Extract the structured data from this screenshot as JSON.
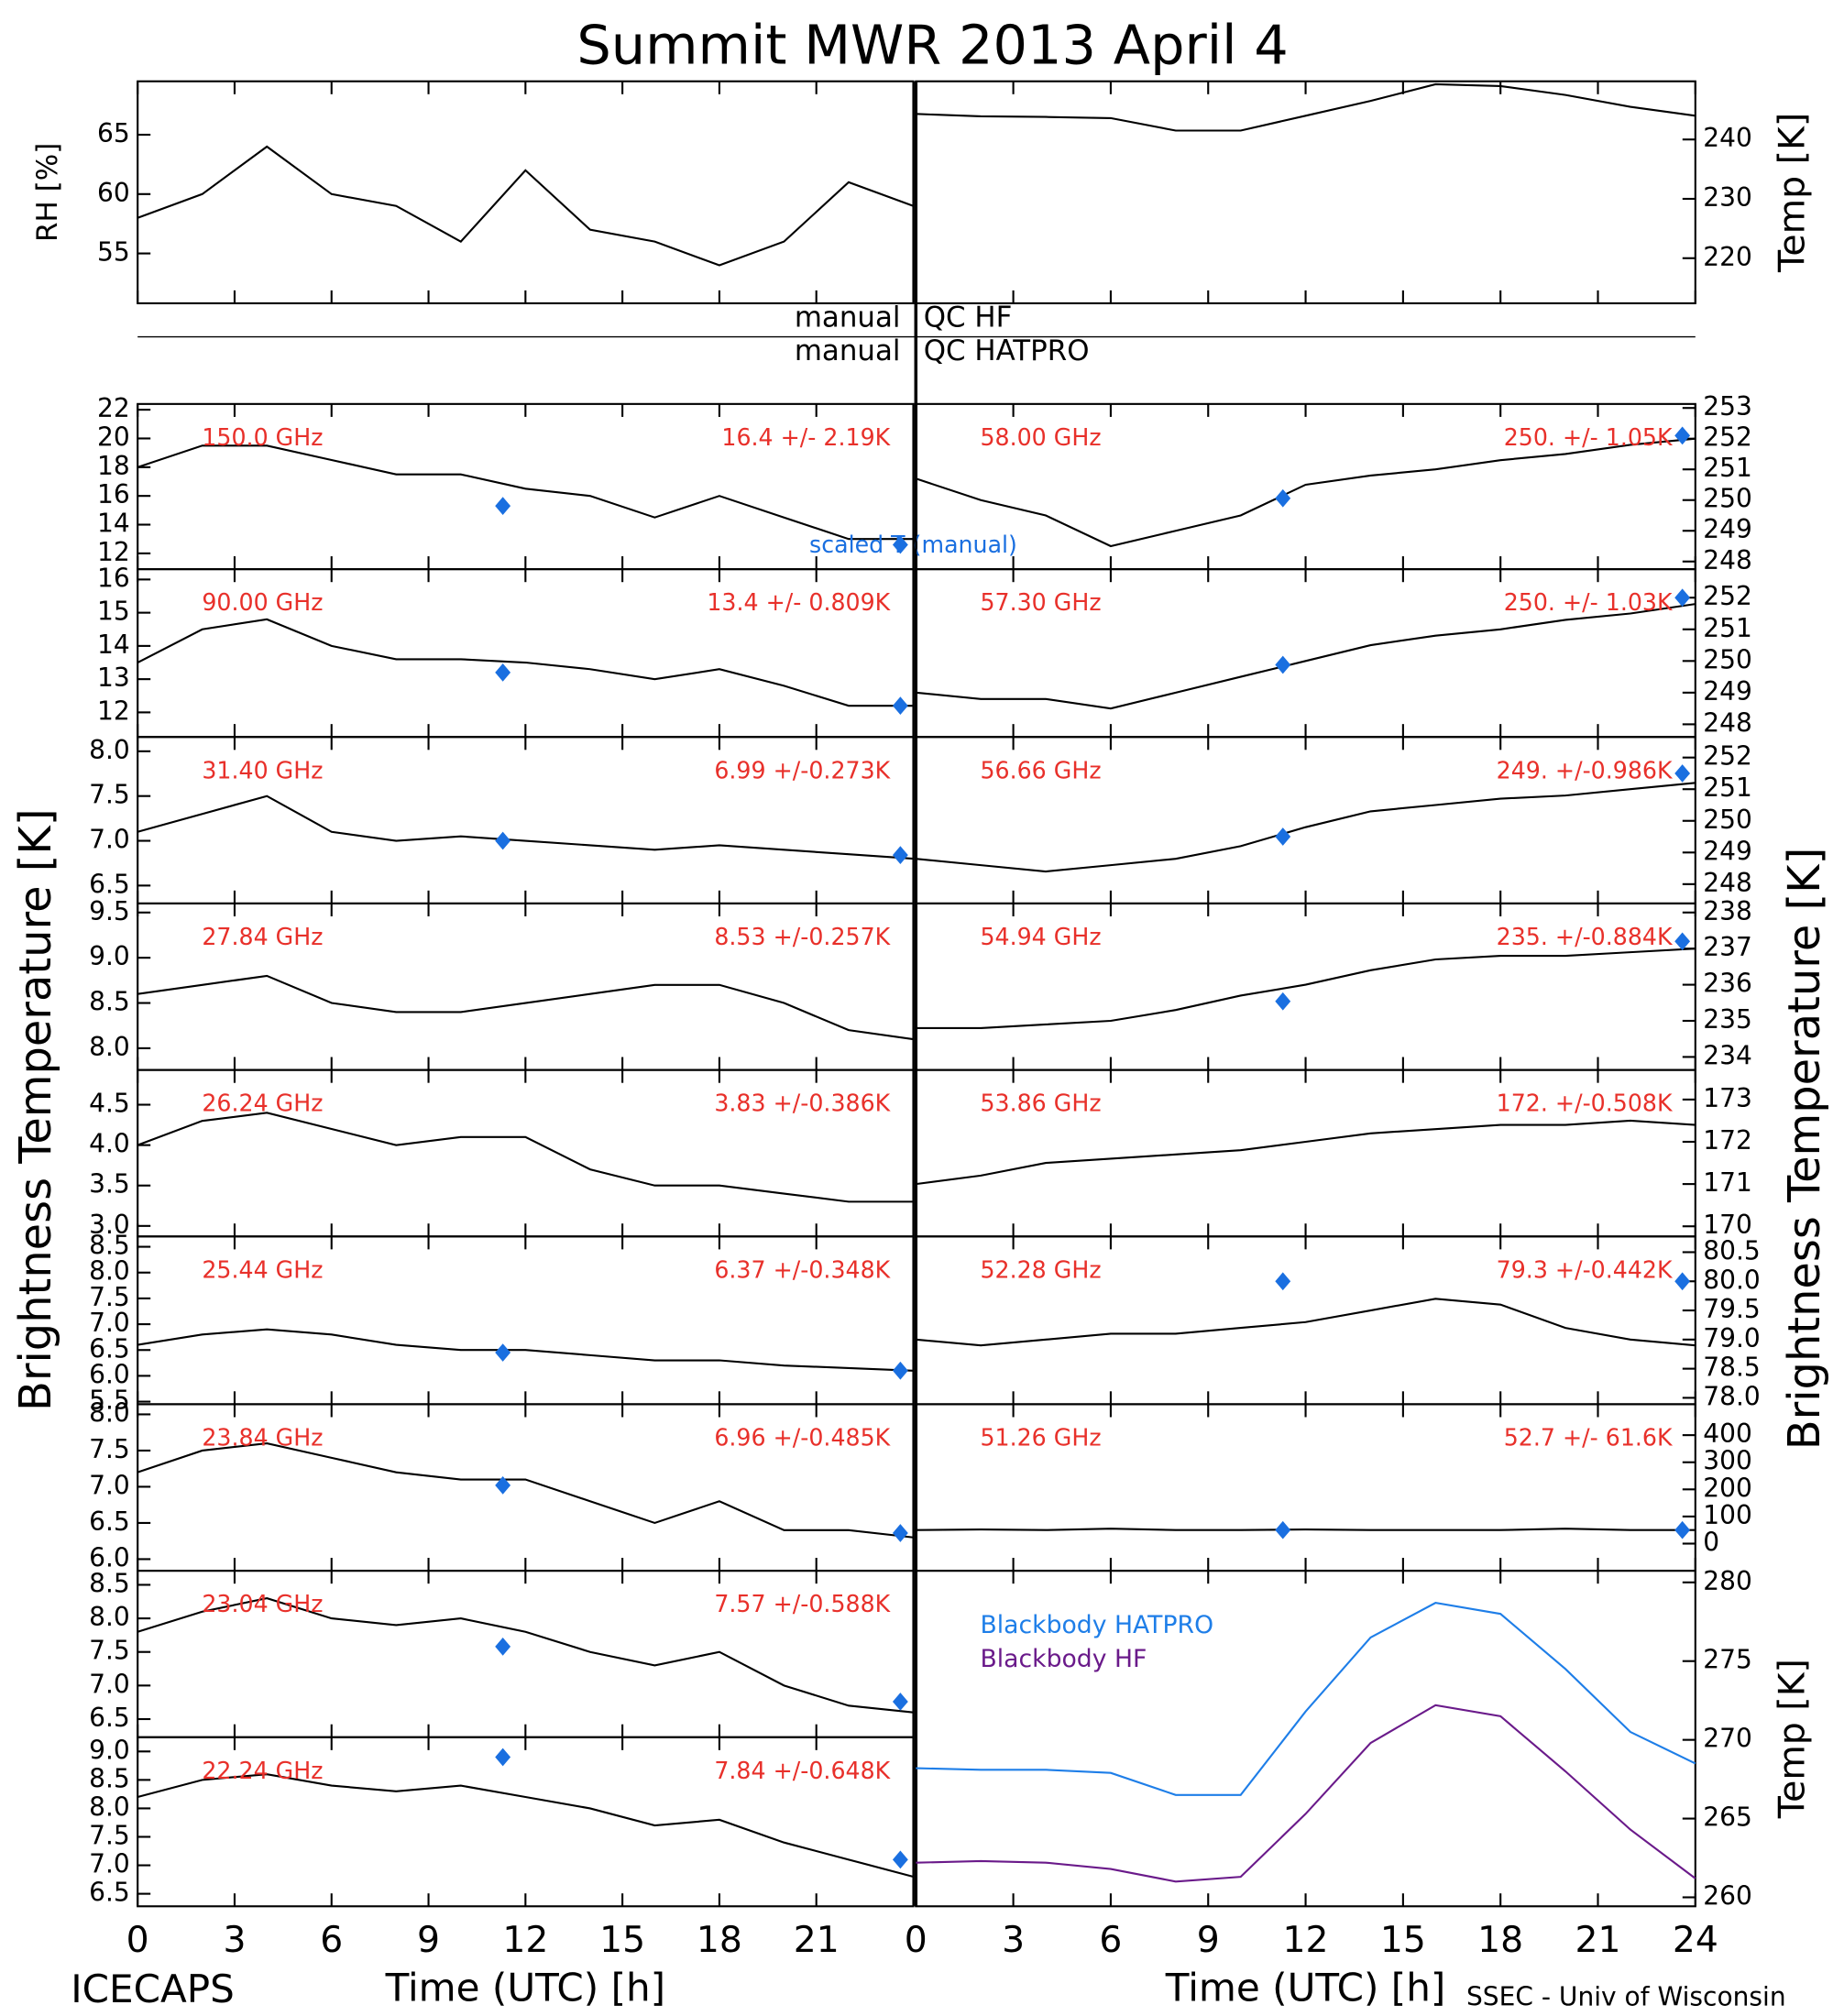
{
  "title": "Summit MWR 2013 April  4",
  "qc": [
    {
      "left": "manual",
      "right": "QC HF"
    },
    {
      "left": "manual",
      "right": "QC HATPRO"
    }
  ],
  "ylabel_left": "Brightness Temperature [K]",
  "ylabel_right": "Brightness Temperature [K]",
  "footer_left": "ICECAPS",
  "footer_right": "SSEC - Univ of Wisconsin",
  "chart_data": [
    {
      "type": "line",
      "ylabel": "RH [%]",
      "xlim": [
        0,
        24
      ],
      "ylim": [
        50.8,
        69.5
      ],
      "yticks": [
        55,
        60,
        65
      ],
      "x": [
        0,
        2,
        4,
        6,
        8,
        10,
        12,
        14,
        16,
        18,
        20,
        22,
        24
      ],
      "series": [
        {
          "color": "#000000",
          "values": [
            58,
            60,
            64,
            60,
            59,
            56,
            62,
            57,
            56,
            54,
            56,
            61,
            59
          ]
        }
      ]
    },
    {
      "type": "line",
      "ylabel": "Temp [K]",
      "xlim": [
        0,
        24
      ],
      "ylim": [
        212.4,
        249.8
      ],
      "yticks": [
        220,
        230,
        240
      ],
      "x": [
        0,
        2,
        4,
        6,
        8,
        10,
        12,
        14,
        16,
        18,
        20,
        22,
        24
      ],
      "series": [
        {
          "color": "#000000",
          "values": [
            244.3,
            243.9,
            243.8,
            243.6,
            241.5,
            241.5,
            244,
            246.5,
            249.3,
            249,
            247.5,
            245.5,
            244
          ]
        }
      ]
    },
    {
      "type": "line",
      "label": "150.0 GHz",
      "stat": "16.4 +/-  2.19K",
      "note": "scaled T (manual)",
      "xlim": [
        0,
        24
      ],
      "ylim": [
        10.9,
        22.4
      ],
      "yticks": [
        12,
        14,
        16,
        18,
        20,
        22
      ],
      "x": [
        0,
        2,
        4,
        6,
        8,
        10,
        12,
        14,
        16,
        18,
        20,
        22,
        24
      ],
      "series": [
        {
          "color": "#000000",
          "values": [
            18,
            19.5,
            19.5,
            18.5,
            17.5,
            17.5,
            16.5,
            16,
            14.5,
            16,
            14.5,
            13,
            13
          ]
        }
      ],
      "points": {
        "color": "#1a6fe0",
        "x": [
          11.3,
          23.6
        ],
        "values": [
          15.3,
          12.6
        ]
      }
    },
    {
      "type": "line",
      "label": "90.00 GHz",
      "stat": "13.4 +/- 0.809K",
      "xlim": [
        0,
        24
      ],
      "ylim": [
        11.26,
        16.31
      ],
      "yticks": [
        12,
        13,
        14,
        15,
        16
      ],
      "x": [
        0,
        2,
        4,
        6,
        8,
        10,
        12,
        14,
        16,
        18,
        20,
        22,
        24
      ],
      "series": [
        {
          "color": "#000000",
          "values": [
            13.5,
            14.5,
            14.8,
            14,
            13.6,
            13.6,
            13.5,
            13.3,
            13,
            13.3,
            12.8,
            12.2,
            12.2
          ]
        }
      ],
      "points": {
        "color": "#1a6fe0",
        "x": [
          11.3,
          23.6
        ],
        "values": [
          13.2,
          12.2
        ]
      }
    },
    {
      "type": "line",
      "label": "31.40 GHz",
      "stat": "6.99 +/-0.273K",
      "xlim": [
        0,
        24
      ],
      "ylim": [
        6.3,
        8.16
      ],
      "yticks": [
        6.5,
        {
          "value": 7,
          "label": "7.0"
        },
        7.5,
        {
          "value": 8,
          "label": "8.0"
        }
      ],
      "x": [
        0,
        2,
        4,
        6,
        8,
        10,
        12,
        14,
        16,
        18,
        20,
        22,
        24
      ],
      "series": [
        {
          "color": "#000000",
          "values": [
            7.1,
            7.3,
            7.5,
            7.1,
            7.0,
            7.05,
            7.0,
            6.95,
            6.9,
            6.95,
            6.9,
            6.85,
            6.8
          ]
        }
      ],
      "points": {
        "color": "#1a6fe0",
        "x": [
          11.3,
          23.6
        ],
        "values": [
          7.0,
          6.84
        ]
      }
    },
    {
      "type": "line",
      "label": "27.84 GHz",
      "stat": "8.53 +/-0.257K",
      "xlim": [
        0,
        24
      ],
      "ylim": [
        7.76,
        9.6
      ],
      "yticks": [
        {
          "value": 8,
          "label": "8.0"
        },
        8.5,
        {
          "value": 9,
          "label": "9.0"
        },
        9.5
      ],
      "x": [
        0,
        2,
        4,
        6,
        8,
        10,
        12,
        14,
        16,
        18,
        20,
        22,
        24
      ],
      "series": [
        {
          "color": "#000000",
          "values": [
            8.6,
            8.7,
            8.8,
            8.5,
            8.4,
            8.4,
            8.5,
            8.6,
            8.7,
            8.7,
            8.5,
            8.2,
            8.1
          ]
        }
      ]
    },
    {
      "type": "line",
      "label": "26.24 GHz",
      "stat": "3.83 +/-0.386K",
      "xlim": [
        0,
        24
      ],
      "ylim": [
        2.87,
        4.93
      ],
      "yticks": [
        {
          "value": 3,
          "label": "3.0"
        },
        3.5,
        {
          "value": 4,
          "label": "4.0"
        },
        4.5
      ],
      "x": [
        0,
        2,
        4,
        6,
        8,
        10,
        12,
        14,
        16,
        18,
        20,
        22,
        24
      ],
      "series": [
        {
          "color": "#000000",
          "values": [
            4.0,
            4.3,
            4.4,
            4.2,
            4.0,
            4.1,
            4.1,
            3.7,
            3.5,
            3.5,
            3.4,
            3.3,
            3.3
          ]
        }
      ]
    },
    {
      "type": "line",
      "label": "25.44 GHz",
      "stat": "6.37 +/-0.348K",
      "xlim": [
        0,
        24
      ],
      "ylim": [
        5.45,
        8.7
      ],
      "yticks": [
        5.5,
        {
          "value": 6,
          "label": "6.0"
        },
        6.5,
        {
          "value": 7,
          "label": "7.0"
        },
        7.5,
        {
          "value": 8,
          "label": "8.0"
        },
        8.5
      ],
      "x": [
        0,
        2,
        4,
        6,
        8,
        10,
        12,
        14,
        16,
        18,
        20,
        22,
        24
      ],
      "series": [
        {
          "color": "#000000",
          "values": [
            6.6,
            6.8,
            6.9,
            6.8,
            6.6,
            6.5,
            6.5,
            6.4,
            6.3,
            6.3,
            6.2,
            6.15,
            6.1
          ]
        }
      ],
      "points": {
        "color": "#1a6fe0",
        "x": [
          11.3,
          23.6
        ],
        "values": [
          6.45,
          6.1
        ]
      }
    },
    {
      "type": "line",
      "label": "23.84 GHz",
      "stat": "6.96 +/-0.485K",
      "xlim": [
        0,
        24
      ],
      "ylim": [
        5.84,
        8.14
      ],
      "yticks": [
        {
          "value": 6,
          "label": "6.0"
        },
        6.5,
        {
          "value": 7,
          "label": "7.0"
        },
        7.5,
        {
          "value": 8,
          "label": "8.0"
        }
      ],
      "x": [
        0,
        2,
        4,
        6,
        8,
        10,
        12,
        14,
        16,
        18,
        20,
        22,
        24
      ],
      "series": [
        {
          "color": "#000000",
          "values": [
            7.2,
            7.5,
            7.6,
            7.4,
            7.2,
            7.1,
            7.1,
            6.8,
            6.5,
            6.8,
            6.4,
            6.4,
            6.3
          ]
        }
      ],
      "points": {
        "color": "#1a6fe0",
        "x": [
          11.3,
          23.6
        ],
        "values": [
          7.02,
          6.36
        ]
      }
    },
    {
      "type": "line",
      "label": "23.04 GHz",
      "stat": "7.57 +/-0.588K",
      "xlim": [
        0,
        24
      ],
      "ylim": [
        6.23,
        8.71
      ],
      "yticks": [
        6.5,
        {
          "value": 7,
          "label": "7.0"
        },
        7.5,
        {
          "value": 8,
          "label": "8.0"
        },
        8.5
      ],
      "x": [
        0,
        2,
        4,
        6,
        8,
        10,
        12,
        14,
        16,
        18,
        20,
        22,
        24
      ],
      "series": [
        {
          "color": "#000000",
          "values": [
            7.8,
            8.1,
            8.3,
            8.0,
            7.9,
            8.0,
            7.8,
            7.5,
            7.3,
            7.5,
            7.0,
            6.7,
            6.6
          ]
        }
      ],
      "points": {
        "color": "#1a6fe0",
        "x": [
          11.3,
          23.6
        ],
        "values": [
          7.58,
          6.76
        ]
      }
    },
    {
      "type": "line",
      "label": "22.24 GHz",
      "stat": "7.84 +/-0.648K",
      "xlabel": "Time (UTC) [h]",
      "xlim": [
        0,
        24
      ],
      "xticks": [
        0,
        3,
        6,
        9,
        12,
        15,
        18,
        21
      ],
      "ylim": [
        6.28,
        9.25
      ],
      "yticks": [
        6.5,
        {
          "value": 7,
          "label": "7.0"
        },
        7.5,
        {
          "value": 8,
          "label": "8.0"
        },
        8.5,
        {
          "value": 9,
          "label": "9.0"
        }
      ],
      "x": [
        0,
        2,
        4,
        6,
        8,
        10,
        12,
        14,
        16,
        18,
        20,
        22,
        24
      ],
      "series": [
        {
          "color": "#000000",
          "values": [
            8.2,
            8.5,
            8.6,
            8.4,
            8.3,
            8.4,
            8.2,
            8.0,
            7.7,
            7.8,
            7.4,
            7.1,
            6.8
          ]
        }
      ],
      "points": {
        "color": "#1a6fe0",
        "x": [
          11.3,
          23.6
        ],
        "values": [
          8.9,
          7.1
        ]
      }
    },
    {
      "type": "line",
      "label": "58.00 GHz",
      "stat": "250. +/- 1.05K",
      "xlim": [
        0,
        24
      ],
      "ylim": [
        247.75,
        253.13
      ],
      "yticks": [
        248,
        249,
        250,
        251,
        252,
        253
      ],
      "x": [
        0,
        2,
        4,
        6,
        8,
        10,
        12,
        14,
        16,
        18,
        20,
        22,
        24
      ],
      "series": [
        {
          "color": "#000000",
          "values": [
            250.7,
            250,
            249.5,
            248.5,
            249,
            249.5,
            250.5,
            250.8,
            251,
            251.3,
            251.5,
            251.8,
            252
          ]
        }
      ],
      "points": {
        "color": "#1a6fe0",
        "x": [
          11.3,
          23.6
        ],
        "values": [
          250.06,
          252.1
        ]
      }
    },
    {
      "type": "line",
      "label": "57.30 GHz",
      "stat": "250. +/- 1.03K",
      "xlim": [
        0,
        24
      ],
      "ylim": [
        247.6,
        252.9
      ],
      "yticks": [
        248,
        249,
        250,
        251,
        252
      ],
      "x": [
        0,
        2,
        4,
        6,
        8,
        10,
        12,
        14,
        16,
        18,
        20,
        22,
        24
      ],
      "series": [
        {
          "color": "#000000",
          "values": [
            249,
            248.8,
            248.8,
            248.5,
            249,
            249.5,
            250,
            250.5,
            250.8,
            251,
            251.3,
            251.5,
            251.8
          ]
        }
      ],
      "points": {
        "color": "#1a6fe0",
        "x": [
          11.3,
          23.6
        ],
        "values": [
          249.88,
          252.0
        ]
      }
    },
    {
      "type": "line",
      "label": "56.66 GHz",
      "stat": "249. +/-0.986K",
      "xlim": [
        0,
        24
      ],
      "ylim": [
        247.39,
        252.65
      ],
      "yticks": [
        248,
        249,
        250,
        251,
        252
      ],
      "x": [
        0,
        2,
        4,
        6,
        8,
        10,
        12,
        14,
        16,
        18,
        20,
        22,
        24
      ],
      "series": [
        {
          "color": "#000000",
          "values": [
            248.8,
            248.6,
            248.4,
            248.6,
            248.8,
            249.2,
            249.8,
            250.3,
            250.5,
            250.7,
            250.8,
            251,
            251.2
          ]
        }
      ],
      "points": {
        "color": "#1a6fe0",
        "x": [
          11.3,
          23.6
        ],
        "values": [
          249.5,
          251.5
        ]
      }
    },
    {
      "type": "line",
      "label": "54.94 GHz",
      "stat": "235. +/-0.884K",
      "xlim": [
        0,
        24
      ],
      "ylim": [
        233.64,
        238.25
      ],
      "yticks": [
        234,
        235,
        236,
        237,
        238
      ],
      "x": [
        0,
        2,
        4,
        6,
        8,
        10,
        12,
        14,
        16,
        18,
        20,
        22,
        24
      ],
      "series": [
        {
          "color": "#000000",
          "values": [
            234.8,
            234.8,
            234.9,
            235,
            235.3,
            235.7,
            236,
            236.4,
            236.7,
            236.8,
            236.8,
            236.9,
            237
          ]
        }
      ],
      "points": {
        "color": "#1a6fe0",
        "x": [
          11.3,
          23.6
        ],
        "values": [
          235.54,
          237.2
        ]
      }
    },
    {
      "type": "line",
      "label": "53.86 GHz",
      "stat": "172. +/-0.508K",
      "xlim": [
        0,
        24
      ],
      "ylim": [
        169.76,
        173.7
      ],
      "yticks": [
        170,
        171,
        172,
        173
      ],
      "x": [
        0,
        2,
        4,
        6,
        8,
        10,
        12,
        14,
        16,
        18,
        20,
        22,
        24
      ],
      "series": [
        {
          "color": "#000000",
          "values": [
            171,
            171.2,
            171.5,
            171.6,
            171.7,
            171.8,
            172,
            172.2,
            172.3,
            172.4,
            172.4,
            172.5,
            172.4
          ]
        }
      ]
    },
    {
      "type": "line",
      "label": "52.28 GHz",
      "stat": "79.3 +/-0.442K",
      "xlim": [
        0,
        24
      ],
      "ylim": [
        77.89,
        80.77
      ],
      "yticks": [
        {
          "value": 78,
          "label": "78.0"
        },
        78.5,
        {
          "value": 79,
          "label": "79.0"
        },
        79.5,
        {
          "value": 80,
          "label": "80.0"
        },
        80.5
      ],
      "x": [
        0,
        2,
        4,
        6,
        8,
        10,
        12,
        14,
        16,
        18,
        20,
        22,
        24
      ],
      "series": [
        {
          "color": "#000000",
          "values": [
            79,
            78.9,
            79,
            79.1,
            79.1,
            79.2,
            79.3,
            79.5,
            79.7,
            79.6,
            79.2,
            79.0,
            78.9
          ]
        }
      ],
      "points": {
        "color": "#1a6fe0",
        "x": [
          11.3,
          23.6
        ],
        "values": [
          80.0,
          80.0
        ]
      }
    },
    {
      "type": "line",
      "label": "51.26 GHz",
      "stat": "52.7 +/- 61.6K",
      "xlim": [
        0,
        24
      ],
      "ylim": [
        -100,
        514
      ],
      "yticks": [
        0,
        100,
        200,
        300,
        400
      ],
      "x": [
        0,
        2,
        4,
        6,
        8,
        10,
        12,
        14,
        16,
        18,
        20,
        22,
        24
      ],
      "series": [
        {
          "color": "#000000",
          "values": [
            50,
            52,
            50,
            55,
            50,
            50,
            52,
            50,
            50,
            50,
            55,
            50,
            50
          ]
        }
      ],
      "points": {
        "color": "#1a6fe0",
        "x": [
          11.3,
          23.6
        ],
        "values": [
          50,
          50
        ]
      }
    },
    {
      "type": "line",
      "ylabel": "Temp [K]",
      "xlabel": "Time (UTC) [h]",
      "xlim": [
        0,
        24
      ],
      "xticks": [
        0,
        3,
        6,
        9,
        12,
        15,
        18,
        21,
        24
      ],
      "ylim": [
        259.43,
        280.74
      ],
      "yticks": [
        260,
        265,
        270,
        275,
        280
      ],
      "x": [
        0,
        2,
        4,
        6,
        8,
        10,
        12,
        14,
        16,
        18,
        20,
        22,
        24
      ],
      "series": [
        {
          "name": "Blackbody HATPRO",
          "color": "#1e7ee8",
          "values": [
            268.2,
            268.1,
            268.1,
            267.9,
            266.5,
            266.5,
            271.8,
            276.5,
            278.7,
            278,
            274.5,
            270.5,
            268.5
          ]
        },
        {
          "name": "Blackbody HF",
          "color": "#6a1a8a",
          "values": [
            262.2,
            262.3,
            262.2,
            261.8,
            261,
            261.3,
            265.3,
            269.8,
            272.2,
            271.5,
            268,
            264.3,
            261.2
          ]
        }
      ]
    }
  ]
}
